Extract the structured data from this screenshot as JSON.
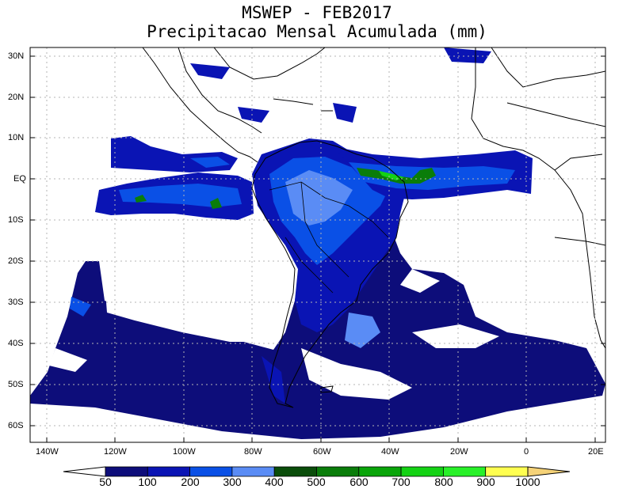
{
  "title": "MSWEP - FEB2017",
  "subtitle": "Precipitacao Mensal Acumulada (mm)",
  "lat_labels": [
    "30N",
    "20N",
    "10N",
    "EQ",
    "10S",
    "20S",
    "30S",
    "40S",
    "50S",
    "60S"
  ],
  "lon_labels": [
    "140W",
    "120W",
    "100W",
    "80W",
    "60W",
    "40W",
    "20W",
    "0",
    "20E"
  ],
  "colorbar": {
    "labels": [
      "50",
      "100",
      "200",
      "300",
      "400",
      "500",
      "600",
      "700",
      "800",
      "900",
      "1000"
    ],
    "colors": [
      "#ffffff",
      "#0d0d7a",
      "#0a14b4",
      "#0a50e6",
      "#5a8cf5",
      "#0a4d0a",
      "#0a7d0a",
      "#0aa50a",
      "#14d214",
      "#28f028",
      "#ffff50",
      "#f5d278"
    ]
  },
  "map": {
    "lon_range": [
      -145,
      23
    ],
    "lat_range": [
      -65,
      31
    ],
    "grid": true
  }
}
